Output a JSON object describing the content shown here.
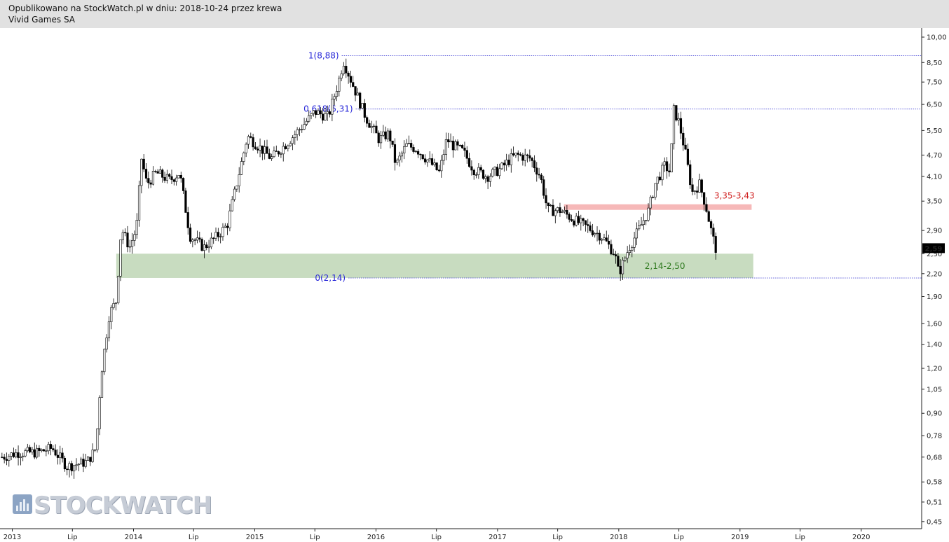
{
  "header": {
    "published": "Opublikowano na StockWatch.pl w dniu: 2018-10-24 przez krewa",
    "instrument": "Vivid Games SA"
  },
  "logo": {
    "text": "STOCKWATCH",
    "icon": "bar-chart-logo-icon"
  },
  "colors": {
    "candle": "#000000",
    "fib_line": "#2a2ad0",
    "support_zone": "#c8dcc0",
    "resistance_zone": "#f6b8b8",
    "support_label": "#2f7a1f",
    "resistance_label": "#d02020",
    "last_price_bg": "#000000"
  },
  "chart_data": {
    "type": "candlestick",
    "scale": "log",
    "ylim": [
      0.43,
      10.6
    ],
    "xlim": [
      "2012-11-25",
      "2020-07-01"
    ],
    "grid": false,
    "y_ticks": [
      "10,00",
      "8,50",
      "7,50",
      "6,50",
      "5,50",
      "4,70",
      "4,10",
      "3,50",
      "2,90",
      "2,50",
      "2,20",
      "1,90",
      "1,60",
      "1,40",
      "1,20",
      "1,05",
      "0,90",
      "0,78",
      "0,68",
      "0,58",
      "0,51",
      "0,45"
    ],
    "y_tick_values": [
      10.0,
      8.5,
      7.5,
      6.5,
      5.5,
      4.7,
      4.1,
      3.5,
      2.9,
      2.5,
      2.2,
      1.9,
      1.6,
      1.4,
      1.2,
      1.05,
      0.9,
      0.78,
      0.68,
      0.58,
      0.51,
      0.45
    ],
    "x_ticks": [
      {
        "label": "2013",
        "date": "2013-01-01"
      },
      {
        "label": "Lip",
        "date": "2013-07-01"
      },
      {
        "label": "2014",
        "date": "2014-01-01"
      },
      {
        "label": "Lip",
        "date": "2014-07-01"
      },
      {
        "label": "2015",
        "date": "2015-01-01"
      },
      {
        "label": "Lip",
        "date": "2015-07-01"
      },
      {
        "label": "2016",
        "date": "2016-01-01"
      },
      {
        "label": "Lip",
        "date": "2016-07-01"
      },
      {
        "label": "2017",
        "date": "2017-01-01"
      },
      {
        "label": "Lip",
        "date": "2017-07-01"
      },
      {
        "label": "2018",
        "date": "2018-01-01"
      },
      {
        "label": "Lip",
        "date": "2018-07-01"
      },
      {
        "label": "2019",
        "date": "2019-01-01"
      },
      {
        "label": "Lip",
        "date": "2019-07-01"
      },
      {
        "label": "2020",
        "date": "2020-01-01"
      }
    ],
    "last_price": {
      "value": 2.59,
      "label": "2,59"
    },
    "fibonacci": [
      {
        "label": "1(8,88)",
        "value": 8.88,
        "start": "2015-09-20"
      },
      {
        "label": "0,618(6,31)",
        "value": 6.31,
        "start": "2015-11-01"
      },
      {
        "label": "0(2,14)",
        "value": 2.14,
        "start": "2015-10-10"
      }
    ],
    "zones": [
      {
        "label": "2,14-2,50",
        "low": 2.14,
        "high": 2.5,
        "start": "2013-11-10",
        "end": "2019-02-10",
        "role": "support"
      },
      {
        "label": "3,35-3,43",
        "low": 3.35,
        "high": 3.43,
        "start": "2017-07-20",
        "end": "2019-02-05",
        "role": "resistance"
      }
    ],
    "price_path": [
      [
        "2012-12-01",
        0.68
      ],
      [
        "2013-01-20",
        0.7
      ],
      [
        "2013-03-15",
        0.7
      ],
      [
        "2013-05-01",
        0.72
      ],
      [
        "2013-06-15",
        0.64
      ],
      [
        "2013-08-15",
        0.66
      ],
      [
        "2013-09-10",
        0.72
      ],
      [
        "2013-09-25",
        1.15
      ],
      [
        "2013-10-20",
        1.7
      ],
      [
        "2013-11-10",
        1.85
      ],
      [
        "2013-11-25",
        2.95
      ],
      [
        "2013-12-20",
        2.6
      ],
      [
        "2014-01-10",
        2.95
      ],
      [
        "2014-01-25",
        4.6
      ],
      [
        "2014-02-10",
        3.9
      ],
      [
        "2014-03-10",
        4.2
      ],
      [
        "2014-04-20",
        4.0
      ],
      [
        "2014-05-20",
        4.2
      ],
      [
        "2014-06-20",
        2.8
      ],
      [
        "2014-08-01",
        2.6
      ],
      [
        "2014-09-10",
        2.8
      ],
      [
        "2014-10-10",
        3.0
      ],
      [
        "2014-11-10",
        4.0
      ],
      [
        "2014-12-10",
        5.3
      ],
      [
        "2015-01-20",
        4.9
      ],
      [
        "2015-02-20",
        4.6
      ],
      [
        "2015-04-01",
        5.0
      ],
      [
        "2015-05-20",
        5.6
      ],
      [
        "2015-07-01",
        6.2
      ],
      [
        "2015-08-10",
        6.0
      ],
      [
        "2015-09-10",
        7.5
      ],
      [
        "2015-09-25",
        8.6
      ],
      [
        "2015-10-20",
        7.5
      ],
      [
        "2015-12-01",
        6.0
      ],
      [
        "2016-01-10",
        5.2
      ],
      [
        "2016-02-10",
        5.4
      ],
      [
        "2016-03-01",
        4.4
      ],
      [
        "2016-04-01",
        5.0
      ],
      [
        "2016-05-01",
        4.9
      ],
      [
        "2016-06-10",
        4.5
      ],
      [
        "2016-07-10",
        4.2
      ],
      [
        "2016-08-01",
        5.2
      ],
      [
        "2016-08-20",
        5.0
      ],
      [
        "2016-09-20",
        4.8
      ],
      [
        "2016-10-20",
        4.3
      ],
      [
        "2016-12-01",
        4.1
      ],
      [
        "2017-01-10",
        4.3
      ],
      [
        "2017-02-10",
        4.6
      ],
      [
        "2017-03-01",
        4.7
      ],
      [
        "2017-04-10",
        4.6
      ],
      [
        "2017-05-10",
        4.1
      ],
      [
        "2017-06-01",
        3.3
      ],
      [
        "2017-07-10",
        3.3
      ],
      [
        "2017-08-20",
        3.1
      ],
      [
        "2017-10-01",
        2.95
      ],
      [
        "2017-11-10",
        2.8
      ],
      [
        "2017-12-20",
        2.5
      ],
      [
        "2018-01-01",
        2.2
      ],
      [
        "2018-02-01",
        2.6
      ],
      [
        "2018-03-01",
        2.9
      ],
      [
        "2018-04-01",
        3.3
      ],
      [
        "2018-04-20",
        3.9
      ],
      [
        "2018-05-20",
        4.4
      ],
      [
        "2018-06-05",
        4.2
      ],
      [
        "2018-06-15",
        6.3
      ],
      [
        "2018-07-01",
        5.8
      ],
      [
        "2018-07-20",
        4.8
      ],
      [
        "2018-08-10",
        3.7
      ],
      [
        "2018-09-01",
        3.9
      ],
      [
        "2018-09-20",
        3.4
      ],
      [
        "2018-10-10",
        2.8
      ],
      [
        "2018-10-20",
        2.59
      ]
    ]
  }
}
